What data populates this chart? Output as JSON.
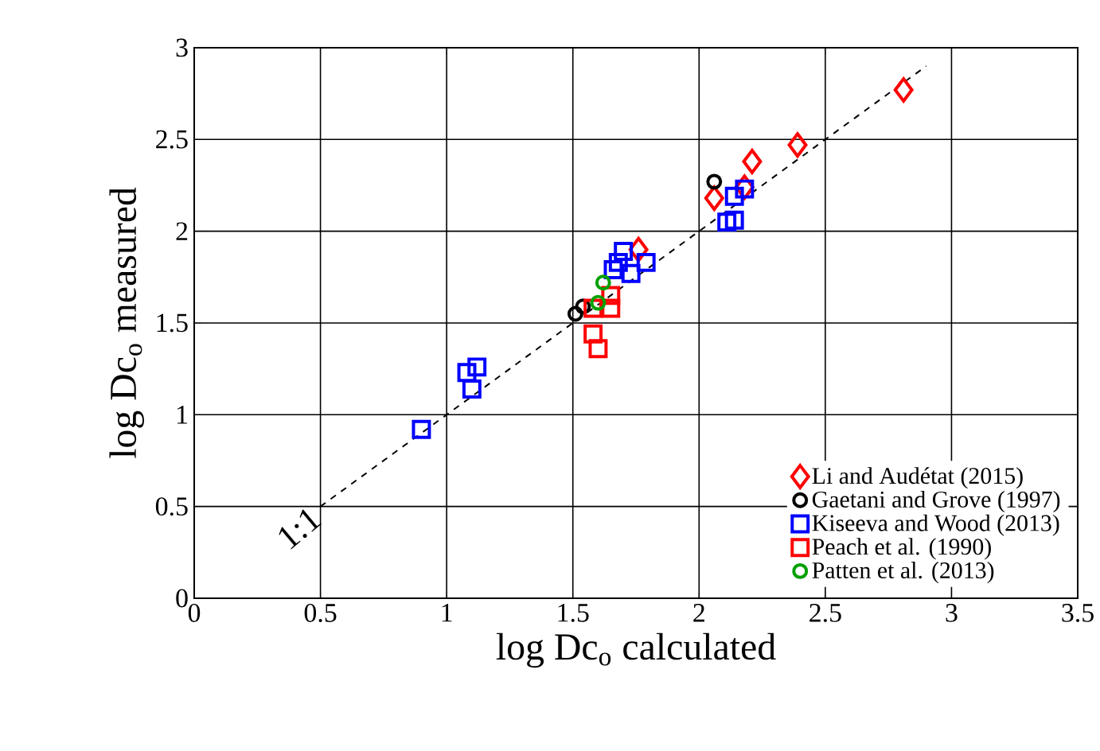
{
  "chart_data": {
    "type": "scatter",
    "xlabel": "log Dc$_{o}$ calculated",
    "ylabel": "log Dc$_{o}$ measured",
    "xlim": [
      0,
      3.5
    ],
    "ylim": [
      0,
      3
    ],
    "xticks": [
      0,
      0.5,
      1,
      1.5,
      2,
      2.5,
      3,
      3.5
    ],
    "yticks": [
      0,
      0.5,
      1,
      1.5,
      2,
      2.5,
      3
    ],
    "grid": true,
    "legend": "bottom right",
    "annotations": [
      "1:1"
    ],
    "series": [
      {
        "name": "Li and Audétat (2015)",
        "color": "#ff0000",
        "marker": "diamond",
        "x": [
          2.81,
          2.39,
          2.21,
          2.18,
          2.06,
          1.76
        ],
        "values": [
          2.77,
          2.47,
          2.38,
          2.24,
          2.18,
          1.9
        ]
      },
      {
        "name": "Gaetani and Grove (1997)",
        "color": "#000000",
        "marker": "circle",
        "x": [
          2.06,
          1.51,
          1.54
        ],
        "values": [
          2.27,
          1.55,
          1.59
        ]
      },
      {
        "name": "Kiseeva and Wood (2013)",
        "color": "#0000ff",
        "marker": "square",
        "x": [
          0.9,
          1.08,
          1.12,
          1.1,
          1.7,
          1.68,
          1.73,
          1.79,
          1.66,
          2.11,
          2.14,
          2.14,
          2.18
        ],
        "values": [
          0.92,
          1.23,
          1.26,
          1.14,
          1.89,
          1.83,
          1.77,
          1.83,
          1.79,
          2.05,
          2.06,
          2.19,
          2.23
        ]
      },
      {
        "name": "Peach et al. (1990)",
        "color": "#ff0000",
        "marker": "square",
        "x": [
          1.65,
          1.65,
          1.58,
          1.58,
          1.6
        ],
        "values": [
          1.65,
          1.58,
          1.58,
          1.44,
          1.36
        ]
      },
      {
        "name": "Patten et al. (2013)",
        "color": "#00a000",
        "marker": "circle",
        "x": [
          1.62,
          1.6
        ],
        "values": [
          1.72,
          1.61
        ]
      },
      {
        "type": "line",
        "color": "#000000",
        "marker": "none",
        "line_style": "dashed",
        "x": [
          0.5,
          2.9
        ],
        "values": [
          0.5,
          2.9
        ]
      }
    ]
  }
}
